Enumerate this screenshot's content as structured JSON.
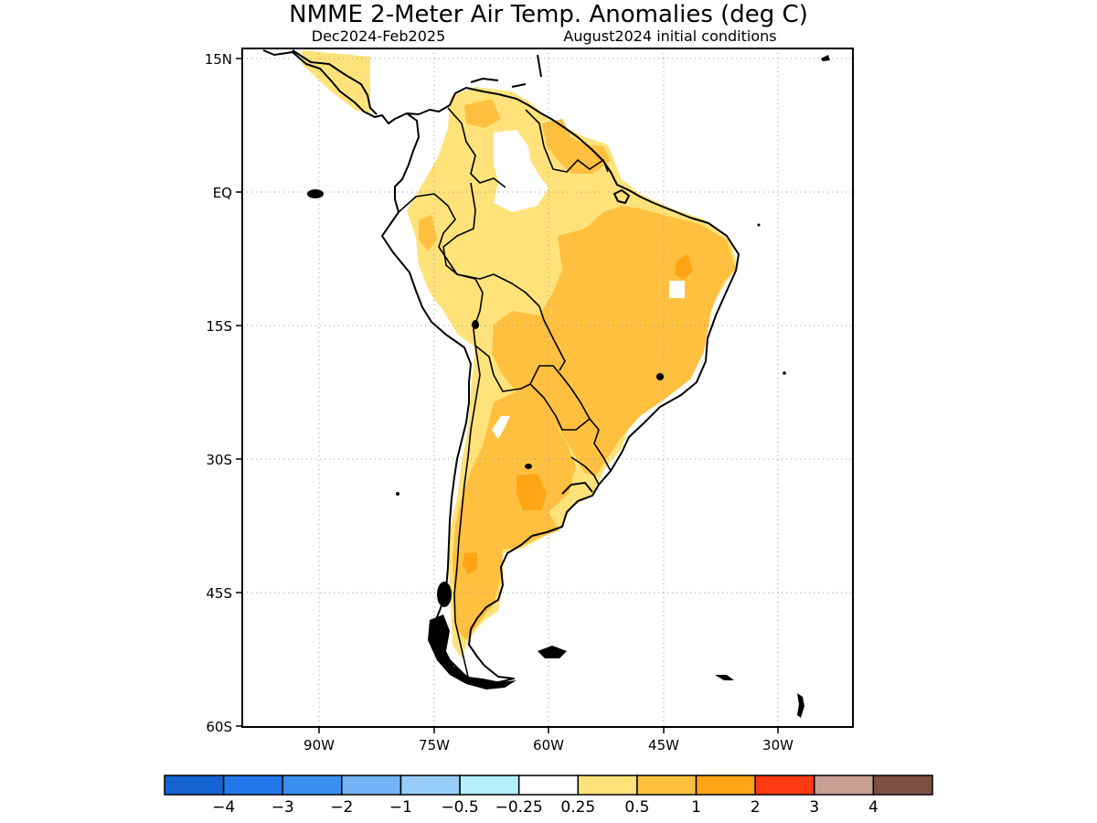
{
  "title": "NMME 2-Meter Air Temp. Anomalies (deg C)",
  "subtitle_period": "Dec2024-Feb2025",
  "subtitle_ic": "August2024 initial conditions",
  "map": {
    "lat_ticks": [
      "15N",
      "EQ",
      "15S",
      "30S",
      "45S",
      "60S"
    ],
    "lon_ticks": [
      "90W",
      "75W",
      "60W",
      "45W",
      "30W"
    ],
    "grid": true
  },
  "colorbar": {
    "colors": [
      "#1664d2",
      "#2278ea",
      "#3a90f0",
      "#74b4f6",
      "#96cdf8",
      "#b4eefa",
      "#ffffff",
      "#ffe37a",
      "#ffc040",
      "#ffa414",
      "#ff3a12",
      "#c8a094",
      "#7c5044"
    ],
    "labels": [
      "-4",
      "-3",
      "-2",
      "-1",
      "-0.5",
      "-0.25",
      "0.25",
      "0.5",
      "1",
      "2",
      "3",
      "4"
    ]
  },
  "anomaly_classes": {
    "near_zero": "#ffffff",
    "light": "#ffe37a",
    "moderate": "#ffc040",
    "strong": "#ffa414"
  }
}
